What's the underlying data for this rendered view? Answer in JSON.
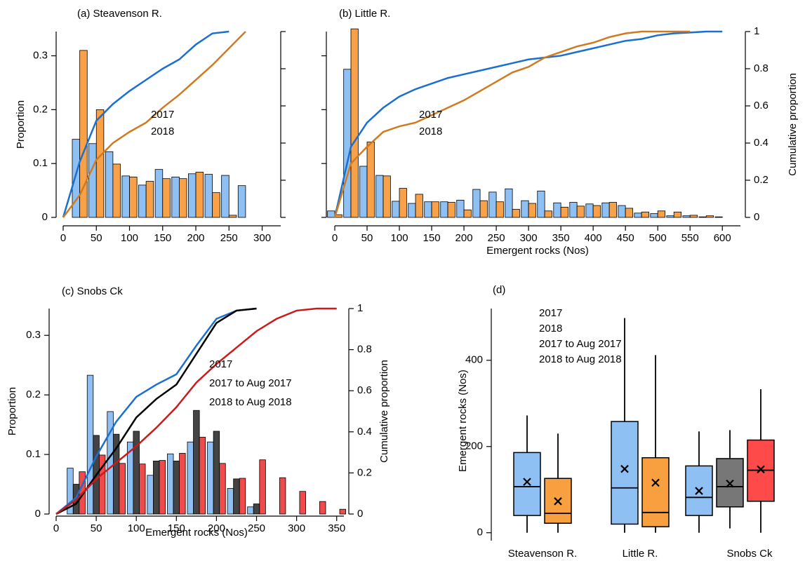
{
  "chart_data": [
    {
      "type": "bar",
      "title": "(a) Steavenson R.",
      "ylabel": "Proportion",
      "x": [
        25,
        50,
        75,
        100,
        125,
        150,
        175,
        200,
        225,
        250,
        275
      ],
      "series": [
        {
          "name": "2017",
          "color": "#8fc0f4",
          "line_color": "#1a6fd0",
          "text_color": "#2a90e8",
          "values": [
            0.145,
            0.137,
            0.122,
            0.077,
            0.06,
            0.089,
            0.075,
            0.081,
            0.08,
            0.078,
            0.059
          ],
          "cumulative": {
            "x": [
              0,
              25,
              50,
              75,
              100,
              125,
              150,
              175,
              200,
              225,
              250
            ],
            "values": [
              0,
              0.3,
              0.52,
              0.61,
              0.68,
              0.74,
              0.8,
              0.85,
              0.93,
              0.99,
              1
            ]
          }
        },
        {
          "name": "2018",
          "color": "#f8a148",
          "line_color": "#d07a20",
          "text_color": "#f09030",
          "values": [
            0.31,
            0.2,
            0.099,
            0.075,
            0.067,
            0.072,
            0.072,
            0.084,
            0.046,
            0.004,
            null
          ],
          "cumulative": {
            "x": [
              0,
              25,
              50,
              75,
              100,
              125,
              150,
              175,
              200,
              225,
              250,
              275
            ],
            "values": [
              0,
              0.12,
              0.31,
              0.4,
              0.46,
              0.51,
              0.59,
              0.66,
              0.74,
              0.82,
              0.91,
              1
            ]
          }
        }
      ],
      "xlim": [
        0,
        328
      ],
      "xticks": [
        0,
        50,
        100,
        150,
        200,
        250,
        300
      ],
      "ylim": [
        0,
        0.345
      ],
      "yticks": [
        0,
        0.1,
        0.2,
        0.3
      ],
      "ytick_labels": true,
      "y2lim": [
        0,
        1
      ],
      "y2ticks": [
        0,
        0.2,
        0.4,
        0.6,
        0.8,
        1
      ],
      "y2tick_labels": false
    },
    {
      "type": "bar",
      "title": "(b) Little R.",
      "xlabel": "Emergent rocks (Nos)",
      "y2label": "Cumulative proportion",
      "x": [
        0,
        25,
        50,
        75,
        100,
        125,
        150,
        175,
        200,
        225,
        250,
        275,
        300,
        325,
        350,
        375,
        400,
        425,
        450,
        475,
        500,
        525,
        550,
        575,
        600
      ],
      "series": [
        {
          "name": "2017",
          "color": "#8fc0f4",
          "line_color": "#1a6fd0",
          "text_color": "#2a90e8",
          "values": [
            0.012,
            0.275,
            0.095,
            0.078,
            0.03,
            0.026,
            0.029,
            0.029,
            0.032,
            0.052,
            0.047,
            0.053,
            0.031,
            0.049,
            0.027,
            0.028,
            0.025,
            0.027,
            0.022,
            0.008,
            0.007,
            0.003,
            0.003,
            0.001,
            0.001
          ],
          "cumulative": {
            "x": [
              0,
              25,
              50,
              75,
              100,
              125,
              150,
              175,
              200,
              225,
              250,
              275,
              300,
              325,
              350,
              375,
              400,
              425,
              450,
              475,
              500,
              525,
              550,
              575,
              600
            ],
            "values": [
              0,
              0.38,
              0.51,
              0.59,
              0.65,
              0.69,
              0.72,
              0.75,
              0.77,
              0.79,
              0.81,
              0.83,
              0.85,
              0.86,
              0.87,
              0.89,
              0.91,
              0.93,
              0.95,
              0.96,
              0.98,
              0.99,
              0.995,
              1,
              1
            ]
          }
        },
        {
          "name": "2018",
          "color": "#f8a148",
          "line_color": "#d07a20",
          "text_color": "#f09030",
          "values": [
            0.005,
            0.35,
            0.14,
            0.077,
            0.054,
            0.043,
            0.029,
            0.028,
            0.014,
            0.031,
            0.029,
            0.015,
            0.026,
            0.012,
            0.019,
            0.021,
            0.022,
            0.028,
            0.017,
            0.01,
            0.012,
            0.01,
            0.004,
            0.003,
            null
          ],
          "cumulative": {
            "x": [
              0,
              25,
              50,
              75,
              100,
              125,
              150,
              175,
              200,
              225,
              250,
              275,
              300,
              325,
              350,
              375,
              400,
              425,
              450,
              475,
              500,
              525,
              550
            ],
            "values": [
              0,
              0.29,
              0.38,
              0.46,
              0.49,
              0.51,
              0.55,
              0.59,
              0.63,
              0.68,
              0.73,
              0.78,
              0.81,
              0.86,
              0.89,
              0.92,
              0.94,
              0.97,
              0.99,
              1,
              1,
              1,
              1
            ]
          }
        }
      ],
      "xlim": [
        0,
        628
      ],
      "xticks": [
        0,
        50,
        100,
        150,
        200,
        250,
        300,
        350,
        400,
        450,
        500,
        550,
        600
      ],
      "ylim": [
        0,
        0.345
      ],
      "yticks": [
        0,
        0.1,
        0.2,
        0.3
      ],
      "ytick_labels": false,
      "y2lim": [
        0,
        1
      ],
      "y2ticks": [
        0,
        0.2,
        0.4,
        0.6,
        0.8,
        1
      ],
      "y2tick_labels": true
    },
    {
      "type": "bar",
      "title": "(c) Snobs Ck",
      "xlabel": "Emergent rocks (Nos)",
      "ylabel": "Proportion",
      "y2label": "Cumulative proportion",
      "x": [
        25,
        50,
        75,
        100,
        125,
        150,
        175,
        200,
        225,
        250,
        275,
        300,
        325,
        350
      ],
      "series": [
        {
          "name": "2017",
          "color": "#8fc0f4",
          "line_color": "#1a6fd0",
          "text_color": "#2a90e8",
          "values": [
            0.077,
            0.233,
            0.172,
            0.121,
            0.065,
            0.101,
            0.121,
            0.121,
            0.043,
            0.012,
            null,
            null,
            null,
            null
          ],
          "cumulative": {
            "x": [
              0,
              25,
              50,
              75,
              100,
              125,
              150,
              175,
              200,
              225,
              250
            ],
            "values": [
              0,
              0.08,
              0.28,
              0.45,
              0.57,
              0.63,
              0.68,
              0.82,
              0.95,
              0.99,
              1
            ]
          }
        },
        {
          "name": "2017 to Aug 2017",
          "color": "#444444",
          "line_color": "#000000",
          "text_color": "#000000",
          "values": [
            0.05,
            0.132,
            0.134,
            0.139,
            0.089,
            0.089,
            0.174,
            0.139,
            0.059,
            0.017,
            null,
            null,
            null,
            null
          ],
          "cumulative": {
            "x": [
              0,
              25,
              50,
              75,
              100,
              125,
              150,
              175,
              200,
              225,
              250
            ],
            "values": [
              0,
              0.05,
              0.19,
              0.32,
              0.47,
              0.56,
              0.63,
              0.78,
              0.93,
              0.99,
              1
            ]
          }
        },
        {
          "name": "2018 to Aug 2018",
          "color": "#f04a4a",
          "line_color": "#cc1a1a",
          "text_color": "#e0201a",
          "values": [
            0.071,
            0.099,
            0.085,
            0.084,
            0.09,
            0.102,
            0.129,
            0.085,
            0.06,
            0.091,
            0.061,
            0.038,
            0.021,
            0.008
          ],
          "cumulative": {
            "x": [
              0,
              25,
              50,
              75,
              100,
              125,
              150,
              175,
              200,
              225,
              250,
              275,
              300,
              325,
              350
            ],
            "values": [
              0,
              0.07,
              0.17,
              0.25,
              0.33,
              0.42,
              0.52,
              0.64,
              0.73,
              0.81,
              0.89,
              0.95,
              0.99,
              1,
              1
            ]
          }
        }
      ],
      "xlim": [
        0,
        359
      ],
      "xticks": [
        0,
        50,
        100,
        150,
        200,
        250,
        300,
        350
      ],
      "ylim": [
        0,
        0.345
      ],
      "yticks": [
        0,
        0.1,
        0.2,
        0.3
      ],
      "ytick_labels": true,
      "y2lim": [
        0,
        1
      ],
      "y2ticks": [
        0,
        0.2,
        0.4,
        0.6,
        0.8,
        1
      ],
      "y2tick_labels": true
    },
    {
      "type": "box",
      "title": "(d)",
      "ylabel": "Emergent rocks (Nos)",
      "categories": [
        "Steavenson R.",
        "Little R.",
        "Snobs Ck"
      ],
      "series": [
        {
          "name": "2017",
          "color": "#8fc0f4",
          "text_color": "#2a90e8",
          "boxes": [
            {
              "min": 0,
              "q1": 40,
              "median": 107,
              "q3": 186,
              "max": 272,
              "mean": 118
            },
            {
              "min": 0,
              "q1": 20,
              "median": 104,
              "q3": 258,
              "max": 498,
              "mean": 148
            },
            {
              "min": 0,
              "q1": 40,
              "median": 82,
              "q3": 155,
              "max": 235,
              "mean": 97
            }
          ]
        },
        {
          "name": "2018",
          "color": "#f8a040",
          "text_color": "#f09030",
          "boxes": [
            {
              "min": 0,
              "q1": 22,
              "median": 45,
              "q3": 126,
              "max": 230,
              "mean": 73
            },
            {
              "min": 0,
              "q1": 14,
              "median": 47,
              "q3": 174,
              "max": 412,
              "mean": 116
            },
            null
          ]
        },
        {
          "name": "2017 to Aug 2017",
          "color": "#777777",
          "text_color": "#000000",
          "boxes": [
            null,
            null,
            {
              "min": 10,
              "q1": 60,
              "median": 107,
              "q3": 172,
              "max": 238,
              "mean": 114
            }
          ]
        },
        {
          "name": "2018 to Aug 2018",
          "color": "#ff4a4a",
          "text_color": "#e0201a",
          "boxes": [
            null,
            null,
            {
              "min": 0,
              "q1": 73,
              "median": 145,
              "q3": 215,
              "max": 333,
              "mean": 147
            }
          ]
        }
      ],
      "ylim": [
        -20,
        520
      ],
      "yticks": [
        0,
        200,
        400
      ]
    }
  ]
}
